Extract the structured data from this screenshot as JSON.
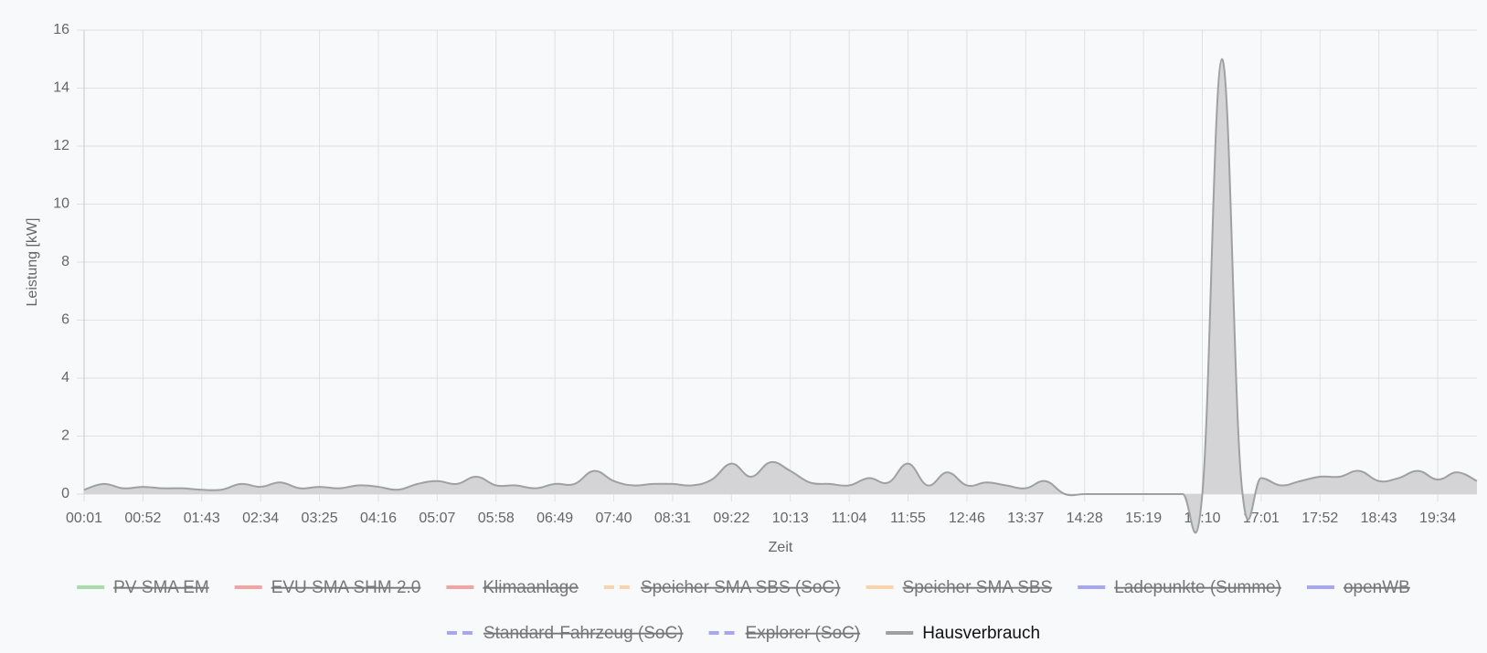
{
  "chart_data": {
    "type": "area",
    "y_label": "Leistung [kW]",
    "x_label": "Zeit",
    "ylim": [
      0,
      16
    ],
    "yticks": [
      0,
      2,
      4,
      6,
      8,
      10,
      12,
      14,
      16
    ],
    "grid": true,
    "categories": [
      "00:01",
      null,
      null,
      "00:52",
      null,
      null,
      "01:43",
      null,
      null,
      "02:34",
      null,
      null,
      "03:25",
      null,
      null,
      "04:16",
      null,
      null,
      "05:07",
      null,
      null,
      "05:58",
      null,
      null,
      "06:49",
      null,
      null,
      "07:40",
      null,
      null,
      "08:31",
      null,
      null,
      "09:22",
      null,
      null,
      "10:13",
      null,
      null,
      "11:04",
      null,
      null,
      "11:55",
      null,
      null,
      "12:46",
      null,
      null,
      "13:37",
      null,
      null,
      "14:28",
      null,
      null,
      "15:19",
      null,
      null,
      "16:10",
      null,
      null,
      "17:01",
      null,
      null,
      "17:52",
      null,
      null,
      "18:43",
      null,
      null,
      "19:34",
      null,
      null
    ],
    "legend_position": "bottom",
    "series": [
      {
        "name": "PV SMA EM",
        "color": "#a8dcaa",
        "hidden": true
      },
      {
        "name": "EVU SMA SHM 2.0",
        "color": "#f4a3a3",
        "hidden": true
      },
      {
        "name": "Klimaanlage",
        "color": "#f4a3a3",
        "hidden": true
      },
      {
        "name": "Speicher SMA SBS (SoC)",
        "color": "#fbd3a8",
        "hidden": true,
        "dashed": true
      },
      {
        "name": "Speicher SMA SBS",
        "color": "#fbd3a8",
        "hidden": true
      },
      {
        "name": "Ladepunkte (Summe)",
        "color": "#a6a6f2",
        "hidden": true
      },
      {
        "name": "openWB",
        "color": "#a6a6f2",
        "hidden": true
      },
      {
        "name": "Standard-Fahrzeug (SoC)",
        "color": "#a6a6f2",
        "hidden": true,
        "dashed": true
      },
      {
        "name": "Explorer (SoC)",
        "color": "#a6a6f2",
        "hidden": true,
        "dashed": true
      },
      {
        "name": "Hausverbrauch",
        "color": "#a0a0a2",
        "fill": "#d4d4d6",
        "hidden": false,
        "values": [
          0.15,
          0.35,
          0.2,
          0.25,
          0.2,
          0.2,
          0.15,
          0.15,
          0.35,
          0.25,
          0.4,
          0.2,
          0.25,
          0.2,
          0.3,
          0.25,
          0.15,
          0.35,
          0.45,
          0.35,
          0.6,
          0.3,
          0.3,
          0.2,
          0.35,
          0.35,
          0.8,
          0.45,
          0.3,
          0.35,
          0.35,
          0.3,
          0.5,
          1.05,
          0.6,
          1.1,
          0.8,
          0.4,
          0.35,
          0.3,
          0.55,
          0.4,
          1.05,
          0.3,
          0.75,
          0.3,
          0.4,
          0.3,
          0.2,
          0.45,
          0,
          0,
          0,
          0,
          0,
          0,
          0,
          0,
          15,
          0.35,
          0.55,
          0.3,
          0.45,
          0.6,
          0.6,
          0.8,
          0.45,
          0.55,
          0.8,
          0.5,
          0.75,
          0.45
        ]
      }
    ]
  }
}
